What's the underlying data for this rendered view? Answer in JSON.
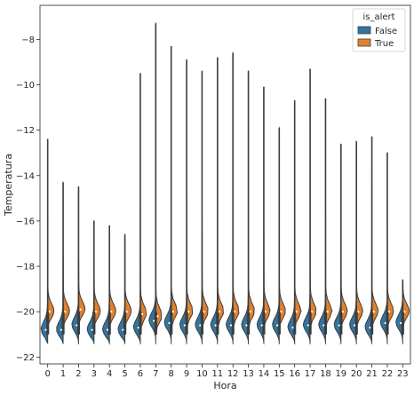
{
  "chart_data": {
    "type": "violin",
    "split": true,
    "xlabel": "Hora",
    "ylabel": "Temperatura",
    "categories": [
      "0",
      "1",
      "2",
      "3",
      "4",
      "5",
      "6",
      "7",
      "8",
      "9",
      "10",
      "11",
      "12",
      "13",
      "14",
      "15",
      "16",
      "17",
      "18",
      "19",
      "20",
      "21",
      "22",
      "23"
    ],
    "yticks": [
      -22,
      -20,
      -18,
      -16,
      -14,
      -12,
      -10,
      -8
    ],
    "ylim": [
      -22.3,
      -6.5
    ],
    "grid": false,
    "legend": {
      "title": "is_alert",
      "placement": "top-right",
      "entries": [
        {
          "label": "False",
          "color": "#3274a1"
        },
        {
          "label": "True",
          "color": "#e1812c"
        }
      ]
    },
    "series": [
      {
        "name": "False",
        "color": "#3274a1",
        "median": [
          -20.8,
          -20.8,
          -20.6,
          -20.8,
          -20.8,
          -20.8,
          -20.7,
          -20.4,
          -20.5,
          -20.6,
          -20.6,
          -20.6,
          -20.6,
          -20.6,
          -20.6,
          -20.6,
          -20.7,
          -20.6,
          -20.6,
          -20.6,
          -20.6,
          -20.7,
          -20.5,
          -20.5
        ],
        "min": [
          -21.4,
          -21.4,
          -21.4,
          -21.4,
          -21.4,
          -21.4,
          -21.4,
          -21.4,
          -21.4,
          -21.4,
          -21.4,
          -21.4,
          -21.4,
          -21.4,
          -21.4,
          -21.4,
          -21.4,
          -21.4,
          -21.4,
          -21.4,
          -21.4,
          -21.4,
          -21.4,
          -21.4
        ],
        "max": [
          -12.4,
          -14.3,
          -14.5,
          -18.9,
          -19.4,
          -19.6,
          -19.6,
          -17.3,
          -19.2,
          -19.3,
          -19.0,
          -19.1,
          -19.2,
          -19.2,
          -19.3,
          -19.3,
          -19.2,
          -19.1,
          -19.2,
          -19.3,
          -19.3,
          -19.4,
          -19.4,
          -19.3
        ]
      },
      {
        "name": "True",
        "color": "#e1812c",
        "median": [
          -20.0,
          -20.0,
          -19.9,
          -20.0,
          -20.0,
          -20.0,
          -20.1,
          -20.2,
          -20.0,
          -20.0,
          -20.0,
          -20.0,
          -20.0,
          -20.0,
          -20.0,
          -20.0,
          -20.0,
          -20.0,
          -20.0,
          -20.0,
          -20.0,
          -20.0,
          -20.0,
          -20.0
        ],
        "min": [
          -21.0,
          -21.0,
          -21.0,
          -21.0,
          -21.0,
          -21.0,
          -21.0,
          -21.0,
          -21.0,
          -21.0,
          -21.0,
          -21.0,
          -21.0,
          -21.0,
          -21.0,
          -21.0,
          -21.0,
          -21.0,
          -21.0,
          -21.0,
          -21.0,
          -21.0,
          -21.0,
          -21.0
        ],
        "max": [
          -16.0,
          -17.5,
          -17.6,
          -16.0,
          -16.2,
          -16.6,
          -9.5,
          -7.3,
          -8.3,
          -8.9,
          -9.4,
          -8.8,
          -8.6,
          -9.4,
          -10.1,
          -11.9,
          -10.7,
          -9.3,
          -10.6,
          -12.6,
          -12.5,
          -12.3,
          -13.0,
          -18.6
        ]
      }
    ]
  }
}
